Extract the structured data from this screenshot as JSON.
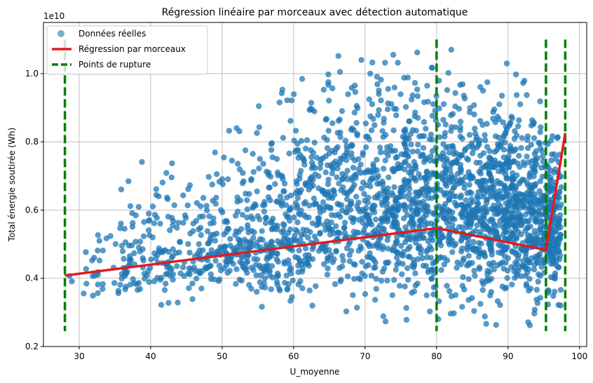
{
  "chart_data": {
    "type": "scatter",
    "title": "Régression linéaire par morceaux avec détection automatique",
    "xlabel": "U_moyenne",
    "ylabel": "Total énergie soutirée (Wh)",
    "y_offset_text": "1e10",
    "y_scale": 10000000000,
    "xlim": [
      25,
      101
    ],
    "ylim": [
      0.2,
      1.15
    ],
    "x_ticks": [
      30,
      40,
      50,
      60,
      70,
      80,
      90,
      100
    ],
    "y_ticks": [
      0.2,
      0.4,
      0.6,
      0.8,
      1.0
    ],
    "x_tick_labels": [
      "30",
      "40",
      "50",
      "60",
      "70",
      "80",
      "90",
      "100"
    ],
    "y_tick_labels": [
      "0.2",
      "0.4",
      "0.6",
      "0.8",
      "1.0"
    ],
    "grid": true,
    "legend_position": "top-left",
    "series": [
      {
        "name": "Données réelles",
        "kind": "scatter",
        "color": "#1f77b4",
        "values_note": "dense cloud; sampled envelope",
        "envelope": [
          {
            "x": 28,
            "ymin": 0.34,
            "ymax": 0.46
          },
          {
            "x": 35,
            "ymin": 0.32,
            "ymax": 0.66
          },
          {
            "x": 40,
            "ymin": 0.32,
            "ymax": 0.78
          },
          {
            "x": 45,
            "ymin": 0.31,
            "ymax": 0.78
          },
          {
            "x": 50,
            "ymin": 0.3,
            "ymax": 0.86
          },
          {
            "x": 55,
            "ymin": 0.29,
            "ymax": 0.92
          },
          {
            "x": 60,
            "ymin": 0.27,
            "ymax": 0.98
          },
          {
            "x": 65,
            "ymin": 0.26,
            "ymax": 1.05
          },
          {
            "x": 70,
            "ymin": 0.25,
            "ymax": 1.08
          },
          {
            "x": 75,
            "ymin": 0.25,
            "ymax": 1.08
          },
          {
            "x": 80,
            "ymin": 0.25,
            "ymax": 1.09
          },
          {
            "x": 85,
            "ymin": 0.25,
            "ymax": 1.07
          },
          {
            "x": 90,
            "ymin": 0.25,
            "ymax": 1.05
          },
          {
            "x": 95,
            "ymin": 0.25,
            "ymax": 0.92
          },
          {
            "x": 97,
            "ymin": 0.27,
            "ymax": 0.88
          }
        ]
      },
      {
        "name": "Régression par morceaux",
        "kind": "line",
        "color": "#e31a1c",
        "x": [
          28,
          80,
          95.3,
          98
        ],
        "y": [
          0.408,
          0.547,
          0.483,
          0.826
        ]
      },
      {
        "name": "Points de rupture",
        "kind": "vline",
        "color": "#008000",
        "x": [
          28,
          80,
          95.3,
          98
        ],
        "ymin": 0.245,
        "ymax": 1.1
      }
    ]
  }
}
